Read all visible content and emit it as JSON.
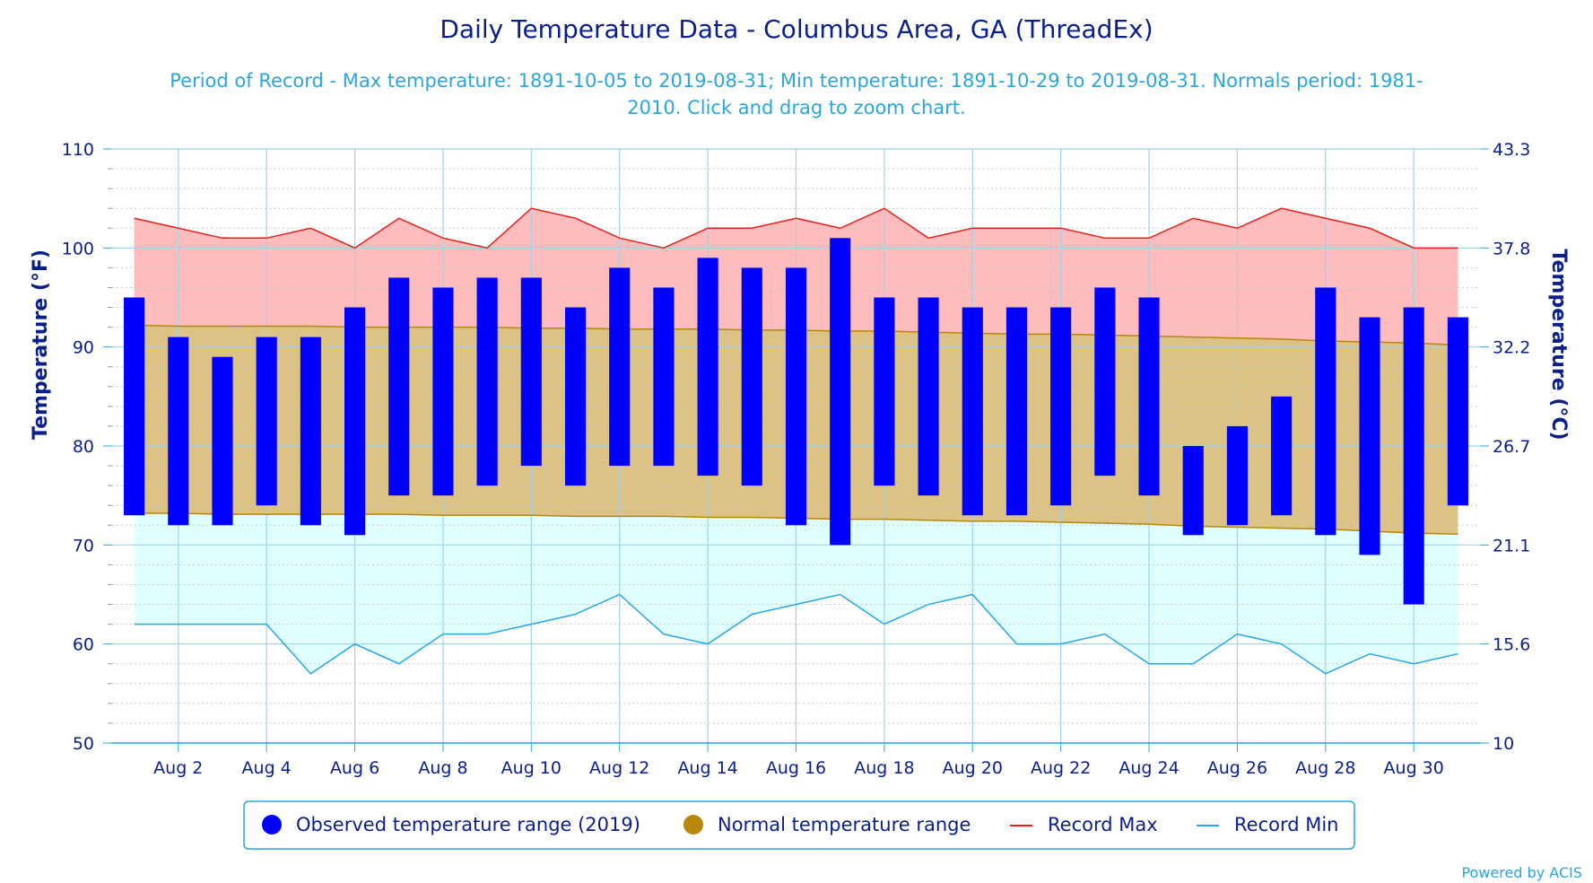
{
  "chart_data": {
    "type": "bar",
    "title": "Daily Temperature Data - Columbus Area, GA (ThreadEx)",
    "subtitle_lines": [
      "Period of Record - Max temperature: 1891-10-05 to 2019-08-31; Min temperature: 1891-10-29 to 2019-08-31. Normals period: 1981-",
      "2010. Click and drag to zoom chart."
    ],
    "ylabel": "Temperature (°F)",
    "ylabel_right": "Temperature (°C)",
    "ylim": [
      50,
      110
    ],
    "x_range": [
      0.5,
      31.5
    ],
    "y_ticks": [
      50,
      60,
      70,
      80,
      90,
      100,
      110
    ],
    "y_right_ticks": [
      "10",
      "15.6",
      "21.1",
      "26.7",
      "32.2",
      "37.8",
      "43.3"
    ],
    "x_tick_days": [
      2,
      4,
      6,
      8,
      10,
      12,
      14,
      16,
      18,
      20,
      22,
      24,
      26,
      28,
      30
    ],
    "x_tick_labels": [
      "Aug 2",
      "Aug 4",
      "Aug 6",
      "Aug 8",
      "Aug 10",
      "Aug 12",
      "Aug 14",
      "Aug 16",
      "Aug 18",
      "Aug 20",
      "Aug 22",
      "Aug 24",
      "Aug 26",
      "Aug 28",
      "Aug 30"
    ],
    "days": [
      1,
      2,
      3,
      4,
      5,
      6,
      7,
      8,
      9,
      10,
      11,
      12,
      13,
      14,
      15,
      16,
      17,
      18,
      19,
      20,
      21,
      22,
      23,
      24,
      25,
      26,
      27,
      28,
      29,
      30,
      31
    ],
    "observed_max": [
      95,
      91,
      89,
      91,
      91,
      94,
      97,
      96,
      97,
      97,
      94,
      98,
      96,
      99,
      98,
      98,
      101,
      95,
      95,
      94,
      94,
      94,
      96,
      95,
      80,
      82,
      85,
      96,
      93,
      94,
      93
    ],
    "observed_min": [
      73,
      72,
      72,
      74,
      72,
      71,
      75,
      75,
      76,
      78,
      76,
      78,
      78,
      77,
      76,
      72,
      70,
      76,
      75,
      73,
      73,
      74,
      77,
      75,
      71,
      72,
      73,
      71,
      69,
      64,
      74
    ],
    "normal_max": [
      92.2,
      92.1,
      92.1,
      92.1,
      92.1,
      92.0,
      92.0,
      92.0,
      92.0,
      91.9,
      91.9,
      91.8,
      91.8,
      91.8,
      91.7,
      91.7,
      91.6,
      91.6,
      91.5,
      91.4,
      91.3,
      91.3,
      91.2,
      91.1,
      91.0,
      90.9,
      90.8,
      90.6,
      90.5,
      90.4,
      90.2
    ],
    "normal_min": [
      73.2,
      73.2,
      73.1,
      73.1,
      73.1,
      73.1,
      73.1,
      73.0,
      73.0,
      73.0,
      72.9,
      72.9,
      72.9,
      72.8,
      72.8,
      72.7,
      72.6,
      72.6,
      72.5,
      72.4,
      72.4,
      72.3,
      72.2,
      72.1,
      71.9,
      71.8,
      71.7,
      71.6,
      71.4,
      71.2,
      71.1
    ],
    "record_max": [
      103,
      102,
      101,
      101,
      102,
      100,
      103,
      101,
      100,
      104,
      103,
      101,
      100,
      102,
      102,
      103,
      102,
      104,
      101,
      102,
      102,
      102,
      101,
      101,
      103,
      102,
      104,
      103,
      102,
      100,
      100
    ],
    "record_min": [
      62,
      62,
      62,
      62,
      57,
      60,
      58,
      61,
      61,
      62,
      63,
      65,
      61,
      60,
      63,
      64,
      65,
      62,
      64,
      65,
      60,
      60,
      61,
      58,
      58,
      61,
      60,
      57,
      59,
      58,
      59
    ],
    "legend": [
      {
        "label": "Observed temperature range (2019)",
        "color": "#0000ff"
      },
      {
        "label": "Normal temperature range",
        "color": "#b8860b"
      },
      {
        "label": "Record Max",
        "color": "#e82020"
      },
      {
        "label": "Record Min",
        "color": "#2aa6e8"
      }
    ],
    "legend_position": "bottom",
    "grid": true,
    "colors": {
      "record_max_fill": "#ffbcbc",
      "normal_fill": "#dcc285",
      "record_min_fill": "#e0ffff",
      "observed_bar": "#0000ff",
      "record_max_line": "#e82020",
      "record_min_line": "#2aa6e8",
      "normal_line": "#b8860b",
      "text": "#0b1f8a",
      "accent": "#2aa6dc"
    },
    "credit": "Powered by ACIS"
  }
}
